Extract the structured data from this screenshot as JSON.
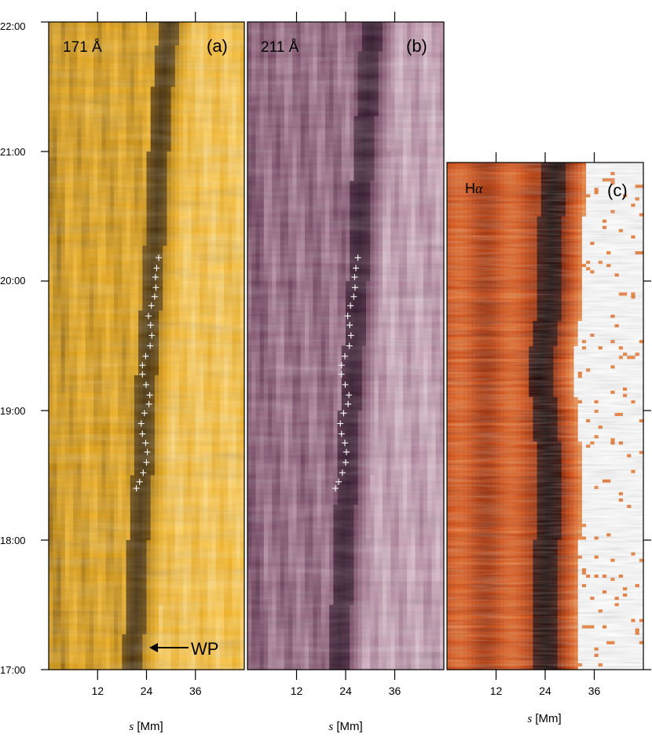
{
  "chart_data": [
    {
      "type": "heatmap",
      "panel_label": "(a)",
      "channel": "171 Å",
      "colormap": [
        "#2a1a04",
        "#7a5208",
        "#c98f10",
        "#f0b020",
        "#ffd060",
        "#fff0c0"
      ],
      "xlabel_var": "s",
      "xlabel_unit": " [Mm]",
      "xticks": [
        "12",
        "24",
        "36"
      ],
      "xtick_values": [
        12,
        24,
        36
      ],
      "xlim": [
        0,
        48
      ],
      "yticks": [
        "17:00",
        "18:00",
        "19:00",
        "20:00",
        "21:00",
        "22:00"
      ],
      "ylim_hours": [
        17,
        22
      ],
      "dark_lane_center": [
        {
          "t": 17.0,
          "s": 20.5
        },
        {
          "t": 17.5,
          "s": 21.5
        },
        {
          "t": 18.0,
          "s": 22.0
        },
        {
          "t": 18.5,
          "s": 23.0
        },
        {
          "t": 19.0,
          "s": 23.5
        },
        {
          "t": 19.5,
          "s": 24.5
        },
        {
          "t": 20.0,
          "s": 25.5
        },
        {
          "t": 20.5,
          "s": 26.5
        },
        {
          "t": 21.0,
          "s": 27.0
        },
        {
          "t": 21.5,
          "s": 28.0
        },
        {
          "t": 22.0,
          "s": 29.5
        }
      ],
      "annotation": "WP",
      "track_points": [
        {
          "s": 21.5,
          "t": 18.4
        },
        {
          "s": 22.3,
          "t": 18.45
        },
        {
          "s": 23.2,
          "t": 18.52
        },
        {
          "s": 24.0,
          "t": 18.6
        },
        {
          "s": 24.2,
          "t": 18.68
        },
        {
          "s": 23.8,
          "t": 18.75
        },
        {
          "s": 23.0,
          "t": 18.82
        },
        {
          "s": 22.7,
          "t": 18.9
        },
        {
          "s": 23.5,
          "t": 18.98
        },
        {
          "s": 24.6,
          "t": 19.05
        },
        {
          "s": 24.8,
          "t": 19.12
        },
        {
          "s": 23.9,
          "t": 19.2
        },
        {
          "s": 23.0,
          "t": 19.28
        },
        {
          "s": 23.0,
          "t": 19.35
        },
        {
          "s": 23.8,
          "t": 19.42
        },
        {
          "s": 24.9,
          "t": 19.5
        },
        {
          "s": 25.3,
          "t": 19.58
        },
        {
          "s": 25.0,
          "t": 19.66
        },
        {
          "s": 24.5,
          "t": 19.73
        },
        {
          "s": 25.2,
          "t": 19.81
        },
        {
          "s": 26.0,
          "t": 19.88
        },
        {
          "s": 26.3,
          "t": 19.95
        },
        {
          "s": 26.2,
          "t": 20.03
        },
        {
          "s": 26.5,
          "t": 20.1
        },
        {
          "s": 27.0,
          "t": 20.18
        }
      ]
    },
    {
      "type": "heatmap",
      "panel_label": "(b)",
      "channel": "211 Å",
      "colormap": [
        "#241020",
        "#4e2440",
        "#7a4a66",
        "#a87c94",
        "#d4b4c4",
        "#f2e4ea"
      ],
      "xlabel_var": "s",
      "xlabel_unit": " [Mm]",
      "xticks": [
        "12",
        "24",
        "36"
      ],
      "xtick_values": [
        12,
        24,
        36
      ],
      "xlim": [
        0,
        48
      ],
      "ylim_hours": [
        17,
        22
      ],
      "dark_lane_center": [
        {
          "t": 17.0,
          "s": 22.0
        },
        {
          "t": 17.5,
          "s": 23.0
        },
        {
          "t": 18.0,
          "s": 23.5
        },
        {
          "t": 18.5,
          "s": 24.5
        },
        {
          "t": 19.0,
          "s": 25.0
        },
        {
          "t": 19.5,
          "s": 26.0
        },
        {
          "t": 20.0,
          "s": 27.0
        },
        {
          "t": 20.5,
          "s": 27.5
        },
        {
          "t": 21.0,
          "s": 28.5
        },
        {
          "t": 21.5,
          "s": 29.5
        },
        {
          "t": 22.0,
          "s": 30.5
        }
      ],
      "track_points": [
        {
          "s": 21.5,
          "t": 18.4
        },
        {
          "s": 22.3,
          "t": 18.45
        },
        {
          "s": 23.2,
          "t": 18.52
        },
        {
          "s": 24.0,
          "t": 18.6
        },
        {
          "s": 24.2,
          "t": 18.68
        },
        {
          "s": 23.8,
          "t": 18.75
        },
        {
          "s": 23.0,
          "t": 18.82
        },
        {
          "s": 22.7,
          "t": 18.9
        },
        {
          "s": 23.5,
          "t": 18.98
        },
        {
          "s": 24.6,
          "t": 19.05
        },
        {
          "s": 24.8,
          "t": 19.12
        },
        {
          "s": 23.9,
          "t": 19.2
        },
        {
          "s": 23.0,
          "t": 19.28
        },
        {
          "s": 23.0,
          "t": 19.35
        },
        {
          "s": 23.8,
          "t": 19.42
        },
        {
          "s": 24.9,
          "t": 19.5
        },
        {
          "s": 25.3,
          "t": 19.58
        },
        {
          "s": 25.0,
          "t": 19.66
        },
        {
          "s": 24.5,
          "t": 19.73
        },
        {
          "s": 25.2,
          "t": 19.81
        },
        {
          "s": 26.0,
          "t": 19.88
        },
        {
          "s": 26.3,
          "t": 19.95
        },
        {
          "s": 26.2,
          "t": 20.03
        },
        {
          "s": 26.5,
          "t": 20.1
        },
        {
          "s": 27.0,
          "t": 20.18
        }
      ]
    },
    {
      "type": "heatmap",
      "panel_label": "(c)",
      "channel_main": "H",
      "channel_sub": "α",
      "colormap": [
        "#000000",
        "#4a0a00",
        "#9a2800",
        "#d84e10",
        "#f08a40",
        "#ffffff"
      ],
      "xlabel_var": "s",
      "xlabel_unit": " [Mm]",
      "xticks": [
        "12",
        "24",
        "36"
      ],
      "xtick_values": [
        12,
        24,
        36
      ],
      "xlim": [
        0,
        48
      ],
      "ylim_hours": [
        17,
        20.9
      ],
      "dark_lane_center": [
        {
          "t": 17.0,
          "s": 24.5
        },
        {
          "t": 17.5,
          "s": 24.0
        },
        {
          "t": 18.0,
          "s": 24.5
        },
        {
          "t": 18.5,
          "s": 25.0
        },
        {
          "t": 19.0,
          "s": 24.0
        },
        {
          "t": 19.3,
          "s": 22.5
        },
        {
          "t": 19.7,
          "s": 24.5
        },
        {
          "t": 20.0,
          "s": 25.5
        },
        {
          "t": 20.5,
          "s": 25.5
        },
        {
          "t": 20.9,
          "s": 26.5
        }
      ]
    }
  ]
}
